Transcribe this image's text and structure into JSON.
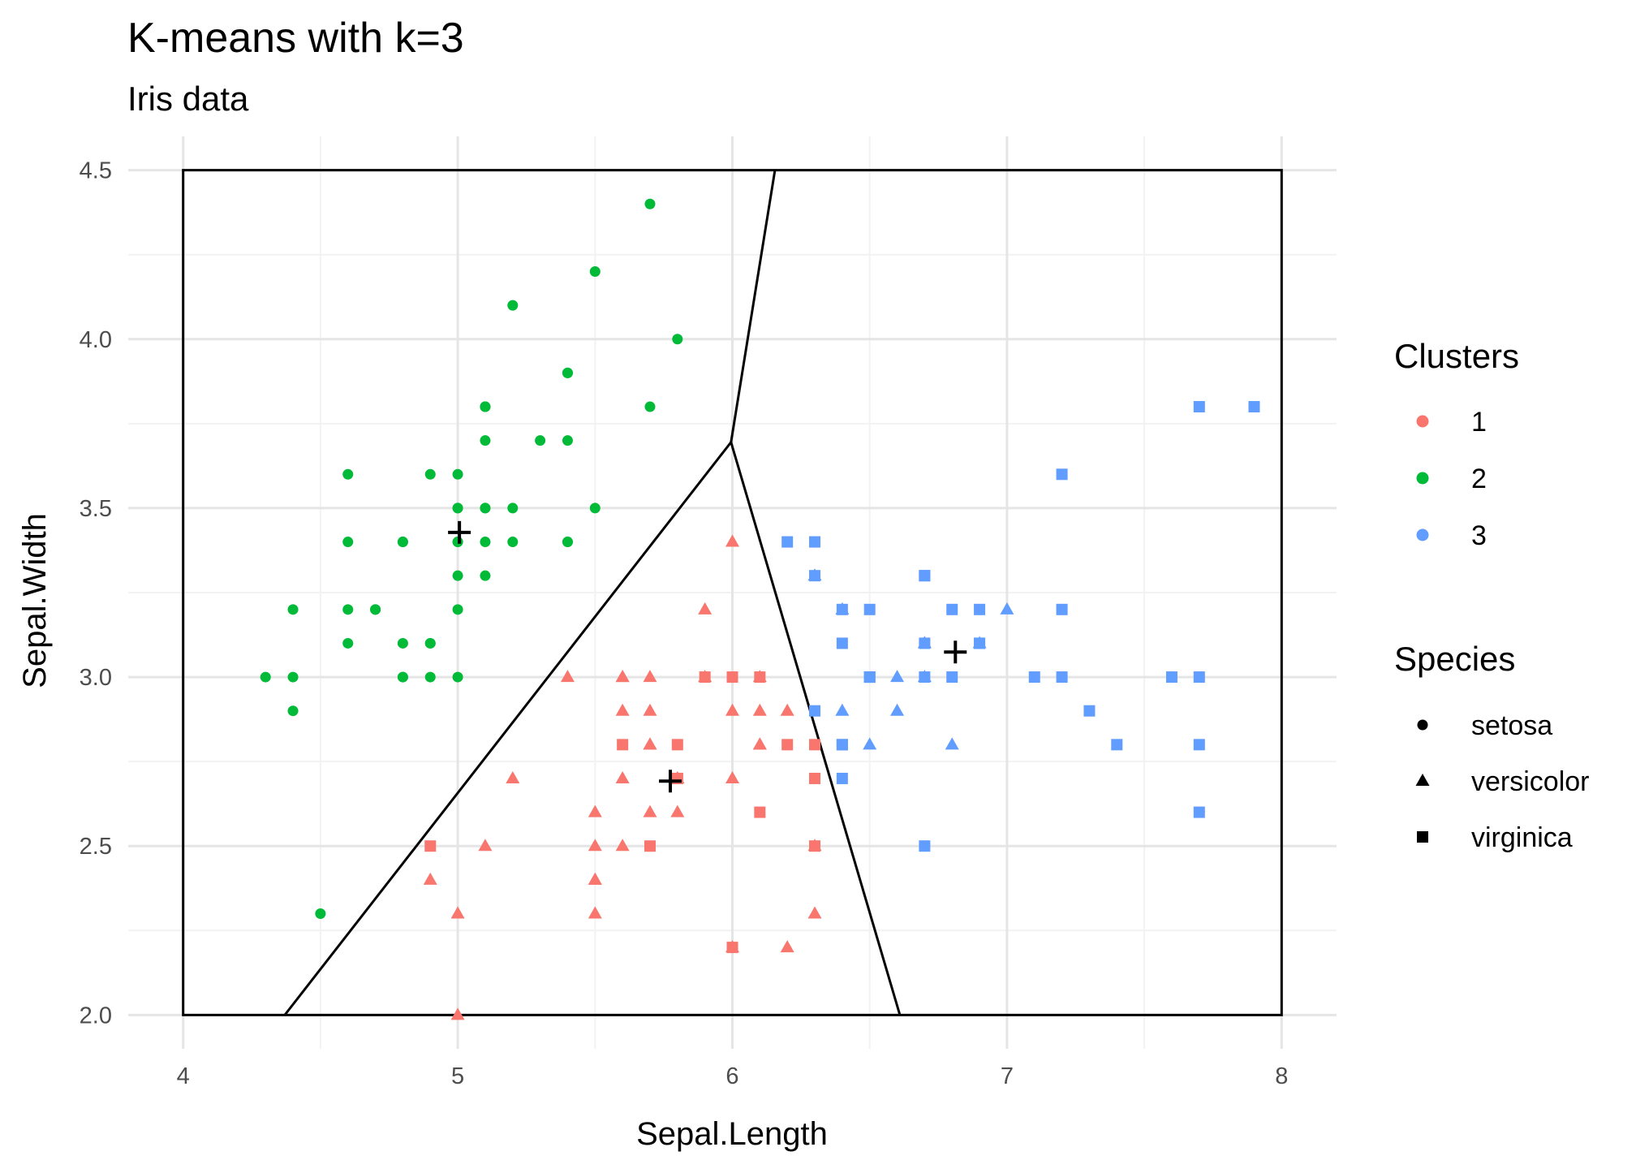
{
  "chart_data": {
    "type": "scatter",
    "title": "K-means with k=3",
    "subtitle": "Iris data",
    "xlabel": "Sepal.Length",
    "ylabel": "Sepal.Width",
    "xlim": [
      3.8,
      8.2
    ],
    "ylim": [
      1.9,
      4.6
    ],
    "xticks": [
      4,
      5,
      6,
      7,
      8
    ],
    "yticks": [
      2.0,
      2.5,
      3.0,
      3.5,
      4.0,
      4.5
    ],
    "ytick_labels": [
      "2.0",
      "2.5",
      "3.0",
      "3.5",
      "4.0",
      "4.5"
    ],
    "grid": true,
    "legend_placement": "right",
    "cluster_colors": {
      "1": "#F8766D",
      "2": "#00BA38",
      "3": "#619CFF"
    },
    "legend": {
      "clusters_title": "Clusters",
      "clusters": [
        "1",
        "2",
        "3"
      ],
      "species_title": "Species",
      "species": [
        {
          "name": "setosa",
          "shape": "circle"
        },
        {
          "name": "versicolor",
          "shape": "triangle"
        },
        {
          "name": "virginica",
          "shape": "square"
        }
      ]
    },
    "centers": [
      [
        5.006,
        3.428
      ],
      [
        5.774,
        2.692
      ],
      [
        6.812,
        3.074
      ]
    ],
    "boundary_box": [
      [
        4,
        2.0
      ],
      [
        8,
        4.5
      ]
    ],
    "voronoi_segments": [
      [
        [
          5.995,
          3.695
        ],
        [
          6.155,
          4.5
        ]
      ],
      [
        [
          5.995,
          3.695
        ],
        [
          4.37,
          2.0
        ]
      ],
      [
        [
          5.995,
          3.695
        ],
        [
          6.61,
          2.0
        ]
      ]
    ],
    "points": {
      "setosa": [
        [
          5.1,
          3.5,
          2
        ],
        [
          4.9,
          3.0,
          2
        ],
        [
          4.7,
          3.2,
          2
        ],
        [
          4.6,
          3.1,
          2
        ],
        [
          5.0,
          3.6,
          2
        ],
        [
          5.4,
          3.9,
          2
        ],
        [
          4.6,
          3.4,
          2
        ],
        [
          5.0,
          3.4,
          2
        ],
        [
          4.4,
          2.9,
          2
        ],
        [
          4.9,
          3.1,
          2
        ],
        [
          5.4,
          3.7,
          2
        ],
        [
          4.8,
          3.4,
          2
        ],
        [
          4.8,
          3.0,
          2
        ],
        [
          4.3,
          3.0,
          2
        ],
        [
          5.8,
          4.0,
          2
        ],
        [
          5.7,
          4.4,
          2
        ],
        [
          5.4,
          3.9,
          2
        ],
        [
          5.1,
          3.5,
          2
        ],
        [
          5.7,
          3.8,
          2
        ],
        [
          5.1,
          3.8,
          2
        ],
        [
          5.4,
          3.4,
          2
        ],
        [
          5.1,
          3.7,
          2
        ],
        [
          4.6,
          3.6,
          2
        ],
        [
          5.1,
          3.3,
          2
        ],
        [
          4.8,
          3.4,
          2
        ],
        [
          5.0,
          3.0,
          2
        ],
        [
          5.0,
          3.4,
          2
        ],
        [
          5.2,
          3.5,
          2
        ],
        [
          5.2,
          3.4,
          2
        ],
        [
          4.7,
          3.2,
          2
        ],
        [
          4.8,
          3.1,
          2
        ],
        [
          5.4,
          3.4,
          2
        ],
        [
          5.2,
          4.1,
          2
        ],
        [
          5.5,
          4.2,
          2
        ],
        [
          4.9,
          3.1,
          2
        ],
        [
          5.0,
          3.2,
          2
        ],
        [
          5.5,
          3.5,
          2
        ],
        [
          4.9,
          3.6,
          2
        ],
        [
          4.4,
          3.0,
          2
        ],
        [
          5.1,
          3.4,
          2
        ],
        [
          5.0,
          3.5,
          2
        ],
        [
          4.5,
          2.3,
          2
        ],
        [
          4.4,
          3.2,
          2
        ],
        [
          5.0,
          3.5,
          2
        ],
        [
          5.1,
          3.8,
          2
        ],
        [
          4.8,
          3.0,
          2
        ],
        [
          5.1,
          3.8,
          2
        ],
        [
          4.6,
          3.2,
          2
        ],
        [
          5.3,
          3.7,
          2
        ],
        [
          5.0,
          3.3,
          2
        ]
      ],
      "versicolor": [
        [
          7.0,
          3.2,
          3
        ],
        [
          6.4,
          3.2,
          3
        ],
        [
          6.9,
          3.1,
          3
        ],
        [
          5.5,
          2.3,
          1
        ],
        [
          6.5,
          2.8,
          3
        ],
        [
          5.7,
          2.8,
          1
        ],
        [
          6.3,
          3.3,
          3
        ],
        [
          4.9,
          2.4,
          1
        ],
        [
          6.6,
          2.9,
          3
        ],
        [
          5.2,
          2.7,
          1
        ],
        [
          5.0,
          2.0,
          1
        ],
        [
          5.9,
          3.0,
          1
        ],
        [
          6.0,
          2.2,
          1
        ],
        [
          6.1,
          2.9,
          1
        ],
        [
          5.6,
          2.9,
          1
        ],
        [
          6.7,
          3.1,
          3
        ],
        [
          5.6,
          3.0,
          1
        ],
        [
          5.8,
          2.7,
          1
        ],
        [
          6.2,
          2.2,
          1
        ],
        [
          5.6,
          2.5,
          1
        ],
        [
          5.9,
          3.2,
          1
        ],
        [
          6.1,
          2.8,
          1
        ],
        [
          6.3,
          2.5,
          1
        ],
        [
          6.1,
          2.8,
          1
        ],
        [
          6.4,
          2.9,
          3
        ],
        [
          6.6,
          3.0,
          3
        ],
        [
          6.8,
          2.8,
          3
        ],
        [
          6.7,
          3.0,
          3
        ],
        [
          6.0,
          2.9,
          1
        ],
        [
          5.7,
          2.6,
          1
        ],
        [
          5.5,
          2.4,
          1
        ],
        [
          5.5,
          2.4,
          1
        ],
        [
          5.8,
          2.7,
          1
        ],
        [
          6.0,
          2.7,
          1
        ],
        [
          5.4,
          3.0,
          1
        ],
        [
          6.0,
          3.4,
          1
        ],
        [
          6.7,
          3.1,
          3
        ],
        [
          6.3,
          2.3,
          1
        ],
        [
          5.6,
          3.0,
          1
        ],
        [
          5.5,
          2.5,
          1
        ],
        [
          5.5,
          2.6,
          1
        ],
        [
          6.1,
          3.0,
          1
        ],
        [
          5.8,
          2.6,
          1
        ],
        [
          5.0,
          2.3,
          1
        ],
        [
          5.6,
          2.7,
          1
        ],
        [
          5.7,
          3.0,
          1
        ],
        [
          5.7,
          2.9,
          1
        ],
        [
          6.2,
          2.9,
          1
        ],
        [
          5.1,
          2.5,
          1
        ],
        [
          5.7,
          2.8,
          1
        ]
      ],
      "virginica": [
        [
          6.3,
          3.3,
          3
        ],
        [
          5.8,
          2.7,
          1
        ],
        [
          7.1,
          3.0,
          3
        ],
        [
          6.3,
          2.9,
          3
        ],
        [
          6.5,
          3.0,
          3
        ],
        [
          7.6,
          3.0,
          3
        ],
        [
          4.9,
          2.5,
          1
        ],
        [
          7.3,
          2.9,
          3
        ],
        [
          6.7,
          2.5,
          3
        ],
        [
          7.2,
          3.6,
          3
        ],
        [
          6.5,
          3.2,
          3
        ],
        [
          6.4,
          2.7,
          3
        ],
        [
          6.8,
          3.0,
          3
        ],
        [
          5.7,
          2.5,
          1
        ],
        [
          5.8,
          2.8,
          1
        ],
        [
          6.4,
          3.2,
          3
        ],
        [
          6.5,
          3.0,
          3
        ],
        [
          7.7,
          3.8,
          3
        ],
        [
          7.7,
          2.6,
          3
        ],
        [
          6.0,
          2.2,
          1
        ],
        [
          6.9,
          3.2,
          3
        ],
        [
          5.6,
          2.8,
          1
        ],
        [
          7.7,
          2.8,
          3
        ],
        [
          6.3,
          2.7,
          1
        ],
        [
          6.7,
          3.3,
          3
        ],
        [
          7.2,
          3.2,
          3
        ],
        [
          6.2,
          2.8,
          1
        ],
        [
          6.1,
          3.0,
          1
        ],
        [
          6.4,
          2.8,
          3
        ],
        [
          7.2,
          3.0,
          3
        ],
        [
          7.4,
          2.8,
          3
        ],
        [
          7.9,
          3.8,
          3
        ],
        [
          6.4,
          2.8,
          3
        ],
        [
          6.3,
          2.8,
          1
        ],
        [
          6.1,
          2.6,
          1
        ],
        [
          7.7,
          3.0,
          3
        ],
        [
          6.3,
          3.4,
          3
        ],
        [
          6.4,
          3.1,
          3
        ],
        [
          6.0,
          3.0,
          1
        ],
        [
          6.9,
          3.1,
          3
        ],
        [
          6.7,
          3.1,
          3
        ],
        [
          6.9,
          3.1,
          3
        ],
        [
          5.8,
          2.7,
          1
        ],
        [
          6.8,
          3.2,
          3
        ],
        [
          6.7,
          3.3,
          3
        ],
        [
          6.7,
          3.0,
          3
        ],
        [
          6.3,
          2.5,
          1
        ],
        [
          6.5,
          3.0,
          3
        ],
        [
          6.2,
          3.4,
          3
        ],
        [
          5.9,
          3.0,
          1
        ]
      ]
    }
  }
}
